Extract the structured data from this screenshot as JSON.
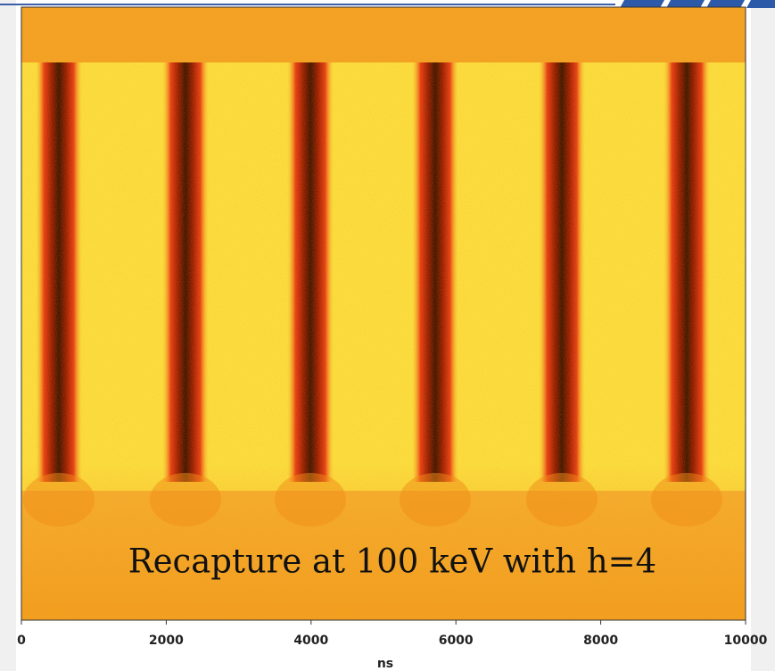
{
  "chart_data": {
    "type": "heatmap",
    "annotation": "Recapture at 100 keV with h=4",
    "xlabel": "ns",
    "xlim": [
      0,
      10000
    ],
    "xticks": [
      0,
      2000,
      4000,
      6000,
      8000,
      10000
    ]
  }
}
